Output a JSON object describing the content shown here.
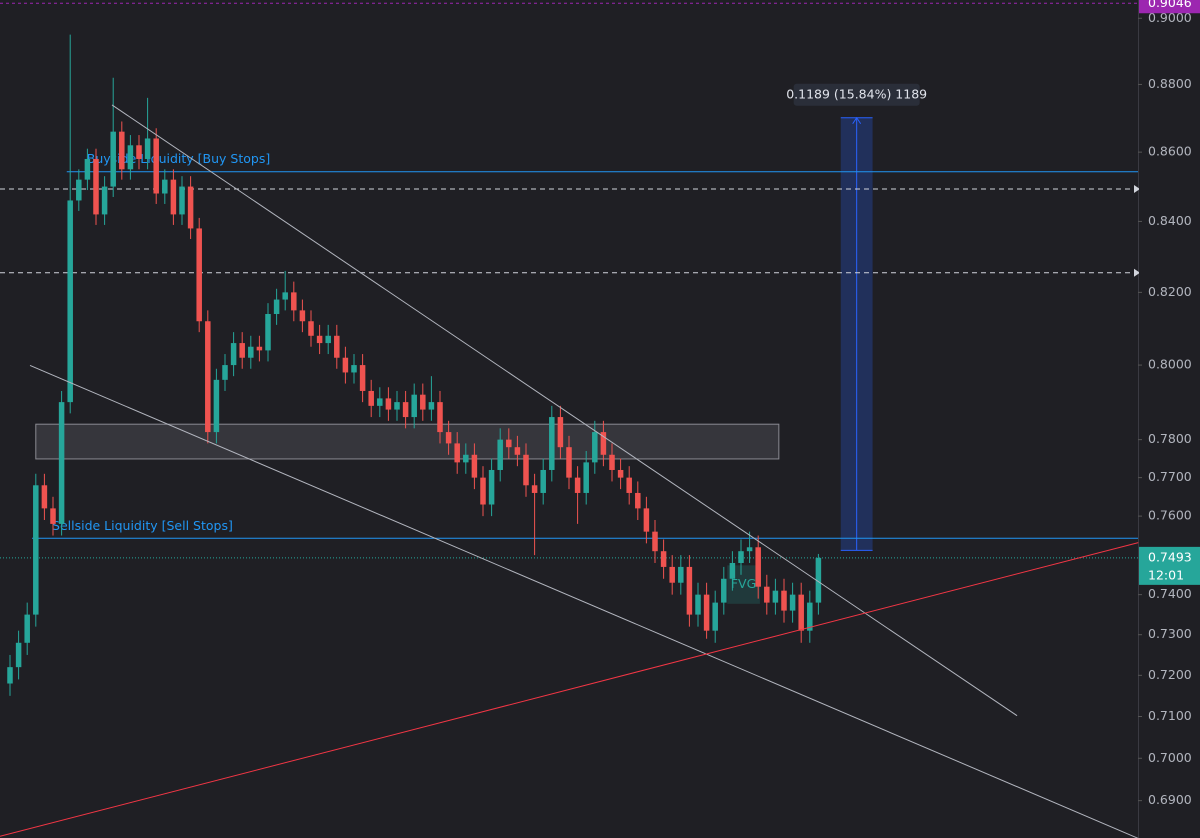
{
  "chart_data": {
    "type": "candlestick",
    "log_scale": true,
    "ylim": [
      0.6813,
      0.9056
    ],
    "xlim": [
      -1.163,
      131.163
    ],
    "yticks": [
      {
        "value": 0.9,
        "label": "0.9000"
      },
      {
        "value": 0.88,
        "label": "0.8800"
      },
      {
        "value": 0.86,
        "label": "0.8600"
      },
      {
        "value": 0.84,
        "label": "0.8400"
      },
      {
        "value": 0.82,
        "label": "0.8200"
      },
      {
        "value": 0.8,
        "label": "0.8000"
      },
      {
        "value": 0.78,
        "label": "0.7800"
      },
      {
        "value": 0.77,
        "label": "0.7700"
      },
      {
        "value": 0.76,
        "label": "0.7600"
      },
      {
        "value": 0.74,
        "label": "0.7400"
      },
      {
        "value": 0.73,
        "label": "0.7300"
      },
      {
        "value": 0.72,
        "label": "0.7200"
      },
      {
        "value": 0.71,
        "label": "0.7100"
      },
      {
        "value": 0.7,
        "label": "0.7000"
      },
      {
        "value": 0.69,
        "label": "0.6900"
      }
    ],
    "up_color": "#26a69a",
    "down_color": "#ef5350",
    "candles": [
      [
        0.718,
        0.725,
        0.715,
        0.722
      ],
      [
        0.722,
        0.731,
        0.719,
        0.728
      ],
      [
        0.728,
        0.738,
        0.725,
        0.735
      ],
      [
        0.735,
        0.771,
        0.732,
        0.768
      ],
      [
        0.768,
        0.771,
        0.759,
        0.762
      ],
      [
        0.762,
        0.765,
        0.755,
        0.758
      ],
      [
        0.758,
        0.793,
        0.755,
        0.79
      ],
      [
        0.79,
        0.895,
        0.787,
        0.846
      ],
      [
        0.846,
        0.855,
        0.843,
        0.852
      ],
      [
        0.852,
        0.861,
        0.849,
        0.858
      ],
      [
        0.858,
        0.861,
        0.839,
        0.842
      ],
      [
        0.842,
        0.853,
        0.839,
        0.85
      ],
      [
        0.85,
        0.882,
        0.847,
        0.866
      ],
      [
        0.866,
        0.869,
        0.852,
        0.855
      ],
      [
        0.855,
        0.865,
        0.852,
        0.862
      ],
      [
        0.862,
        0.865,
        0.855,
        0.858
      ],
      [
        0.858,
        0.876,
        0.855,
        0.864
      ],
      [
        0.864,
        0.867,
        0.845,
        0.848
      ],
      [
        0.848,
        0.855,
        0.845,
        0.852
      ],
      [
        0.852,
        0.855,
        0.839,
        0.842
      ],
      [
        0.842,
        0.853,
        0.839,
        0.85
      ],
      [
        0.85,
        0.853,
        0.835,
        0.838
      ],
      [
        0.838,
        0.841,
        0.809,
        0.812
      ],
      [
        0.812,
        0.815,
        0.779,
        0.782
      ],
      [
        0.782,
        0.799,
        0.779,
        0.796
      ],
      [
        0.796,
        0.803,
        0.793,
        0.8
      ],
      [
        0.8,
        0.809,
        0.797,
        0.806
      ],
      [
        0.806,
        0.809,
        0.799,
        0.802
      ],
      [
        0.802,
        0.808,
        0.799,
        0.805
      ],
      [
        0.805,
        0.808,
        0.801,
        0.804
      ],
      [
        0.804,
        0.817,
        0.801,
        0.814
      ],
      [
        0.814,
        0.821,
        0.811,
        0.818
      ],
      [
        0.818,
        0.826,
        0.815,
        0.82
      ],
      [
        0.82,
        0.823,
        0.812,
        0.815
      ],
      [
        0.815,
        0.818,
        0.809,
        0.812
      ],
      [
        0.812,
        0.815,
        0.805,
        0.808
      ],
      [
        0.808,
        0.811,
        0.803,
        0.806
      ],
      [
        0.806,
        0.811,
        0.803,
        0.808
      ],
      [
        0.808,
        0.811,
        0.799,
        0.802
      ],
      [
        0.802,
        0.805,
        0.795,
        0.798
      ],
      [
        0.798,
        0.803,
        0.795,
        0.8
      ],
      [
        0.8,
        0.803,
        0.79,
        0.793
      ],
      [
        0.793,
        0.796,
        0.786,
        0.789
      ],
      [
        0.789,
        0.794,
        0.786,
        0.791
      ],
      [
        0.791,
        0.794,
        0.785,
        0.788
      ],
      [
        0.788,
        0.793,
        0.785,
        0.79
      ],
      [
        0.79,
        0.793,
        0.783,
        0.786
      ],
      [
        0.786,
        0.795,
        0.783,
        0.792
      ],
      [
        0.792,
        0.795,
        0.785,
        0.788
      ],
      [
        0.788,
        0.797,
        0.785,
        0.79
      ],
      [
        0.79,
        0.793,
        0.779,
        0.782
      ],
      [
        0.782,
        0.785,
        0.776,
        0.779
      ],
      [
        0.779,
        0.782,
        0.771,
        0.774
      ],
      [
        0.774,
        0.779,
        0.771,
        0.776
      ],
      [
        0.776,
        0.779,
        0.767,
        0.77
      ],
      [
        0.77,
        0.773,
        0.76,
        0.763
      ],
      [
        0.763,
        0.775,
        0.76,
        0.772
      ],
      [
        0.772,
        0.783,
        0.769,
        0.78
      ],
      [
        0.78,
        0.783,
        0.775,
        0.778
      ],
      [
        0.778,
        0.781,
        0.773,
        0.776
      ],
      [
        0.776,
        0.779,
        0.765,
        0.768
      ],
      [
        0.768,
        0.771,
        0.75,
        0.766
      ],
      [
        0.766,
        0.775,
        0.763,
        0.772
      ],
      [
        0.772,
        0.789,
        0.769,
        0.786
      ],
      [
        0.786,
        0.789,
        0.775,
        0.778
      ],
      [
        0.778,
        0.781,
        0.767,
        0.77
      ],
      [
        0.77,
        0.773,
        0.758,
        0.766
      ],
      [
        0.766,
        0.777,
        0.763,
        0.774
      ],
      [
        0.774,
        0.785,
        0.771,
        0.782
      ],
      [
        0.782,
        0.785,
        0.773,
        0.776
      ],
      [
        0.776,
        0.779,
        0.769,
        0.772
      ],
      [
        0.772,
        0.775,
        0.767,
        0.77
      ],
      [
        0.77,
        0.773,
        0.763,
        0.766
      ],
      [
        0.766,
        0.769,
        0.759,
        0.762
      ],
      [
        0.762,
        0.765,
        0.753,
        0.756
      ],
      [
        0.756,
        0.759,
        0.748,
        0.751
      ],
      [
        0.751,
        0.754,
        0.744,
        0.747
      ],
      [
        0.747,
        0.75,
        0.74,
        0.743
      ],
      [
        0.743,
        0.75,
        0.74,
        0.747
      ],
      [
        0.747,
        0.75,
        0.732,
        0.735
      ],
      [
        0.735,
        0.743,
        0.732,
        0.74
      ],
      [
        0.74,
        0.743,
        0.729,
        0.731
      ],
      [
        0.731,
        0.741,
        0.728,
        0.738
      ],
      [
        0.738,
        0.747,
        0.735,
        0.744
      ],
      [
        0.744,
        0.751,
        0.741,
        0.748
      ],
      [
        0.748,
        0.754,
        0.745,
        0.751
      ],
      [
        0.751,
        0.756,
        0.748,
        0.752
      ],
      [
        0.752,
        0.755,
        0.739,
        0.742
      ],
      [
        0.742,
        0.745,
        0.735,
        0.738
      ],
      [
        0.738,
        0.744,
        0.735,
        0.741
      ],
      [
        0.741,
        0.744,
        0.733,
        0.736
      ],
      [
        0.736,
        0.743,
        0.733,
        0.74
      ],
      [
        0.74,
        0.743,
        0.728,
        0.731
      ],
      [
        0.731,
        0.741,
        0.728,
        0.738
      ],
      [
        0.738,
        0.7503,
        0.735,
        0.7493
      ]
    ],
    "levels": [
      {
        "label": "Buyside Liquidity [Buy Stops]",
        "value": 0.8543,
        "start": 6.6,
        "color": "#2196f3"
      },
      {
        "label": "Sellside Liquidity [Sell Stops]",
        "value": 0.7543,
        "start": 2.56,
        "color": "#2196f3"
      }
    ],
    "dashed_levels": [
      0.8493,
      0.8255
    ],
    "trendlines": [
      {
        "color": "#b2b5be",
        "points": [
          [
            11.86,
            0.8739
          ],
          [
            117.1,
            0.7102
          ]
        ]
      },
      {
        "color": "#b2b5be",
        "points": [
          [
            2.33,
            0.7999
          ],
          [
            131.2,
            0.6812
          ]
        ]
      },
      {
        "color": "#f23645",
        "points": [
          [
            -1.16,
            0.6817
          ],
          [
            131.2,
            0.7532
          ]
        ]
      }
    ],
    "zone": {
      "x": [
        3.0,
        89.4
      ],
      "y": [
        0.7749,
        0.7841
      ]
    },
    "fvg": {
      "label": "FVG",
      "x": [
        83.4,
        87.2
      ],
      "y": [
        0.7377,
        0.7474
      ]
    },
    "measure": {
      "label": "0.1189 (15.84%) 1189",
      "x": [
        96.6,
        100.3
      ],
      "y": [
        0.7512,
        0.8701
      ]
    },
    "current_price": {
      "value": 0.7493,
      "label": "0.7493",
      "time": "12:01",
      "color": "#26a69a"
    },
    "top_price": {
      "value": 0.9046,
      "label": "0.9046",
      "color": "#9c27b0"
    }
  }
}
